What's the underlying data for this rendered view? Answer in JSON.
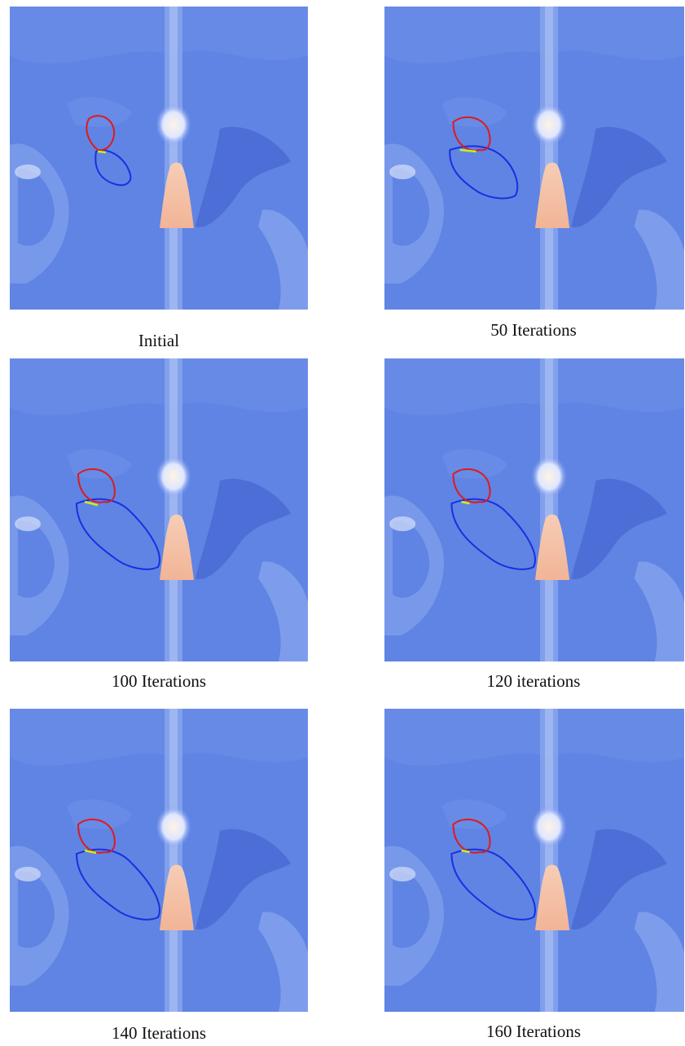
{
  "figure": {
    "panels": [
      {
        "caption": "Initial"
      },
      {
        "caption": "50 Iterations"
      },
      {
        "caption": "100 Iterations"
      },
      {
        "caption": "120 iterations"
      },
      {
        "caption": "140 Iterations"
      },
      {
        "caption": "160 Iterations"
      }
    ]
  }
}
